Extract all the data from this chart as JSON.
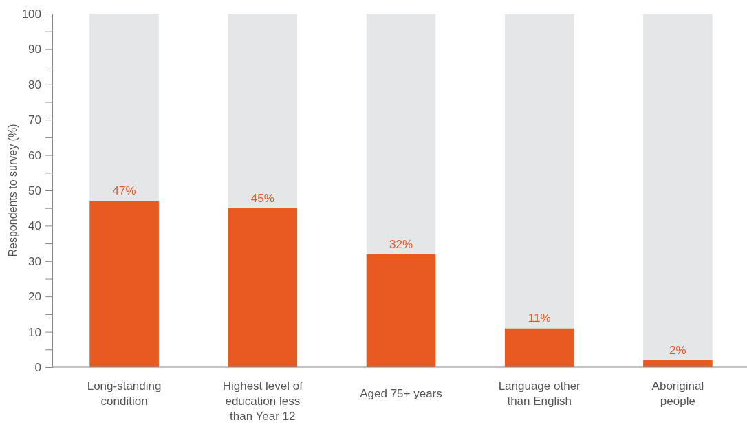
{
  "chart_data": {
    "type": "bar",
    "stacked": true,
    "ylabel": "Respondents to survey  (%)",
    "categories": [
      "Long-standing condition",
      "Highest level of education less than Year 12",
      "Aged 75+ years",
      "Language other than English",
      "Aboriginal people"
    ],
    "series": [
      {
        "color": "#e95a22",
        "values": [
          47,
          45,
          32,
          11,
          2
        ],
        "value_labels": [
          "47%",
          "45%",
          "32%",
          "11%",
          "2%"
        ]
      },
      {
        "color": "#e5e6e8",
        "values": [
          53,
          55,
          68,
          89,
          98
        ]
      }
    ],
    "ylim": [
      0,
      100
    ],
    "yticks": [
      0,
      {
        "value": 5,
        "label": null
      },
      10,
      {
        "value": 15,
        "label": null
      },
      20,
      {
        "value": 25,
        "label": null
      },
      30,
      {
        "value": 35,
        "label": null
      },
      40,
      {
        "value": 45,
        "label": null
      },
      50,
      {
        "value": 55,
        "label": null
      },
      60,
      {
        "value": 65,
        "label": null
      },
      70,
      {
        "value": 75,
        "label": null
      },
      80,
      {
        "value": 85,
        "label": null
      },
      90,
      {
        "value": 95,
        "label": null
      },
      100
    ],
    "grid": false
  }
}
